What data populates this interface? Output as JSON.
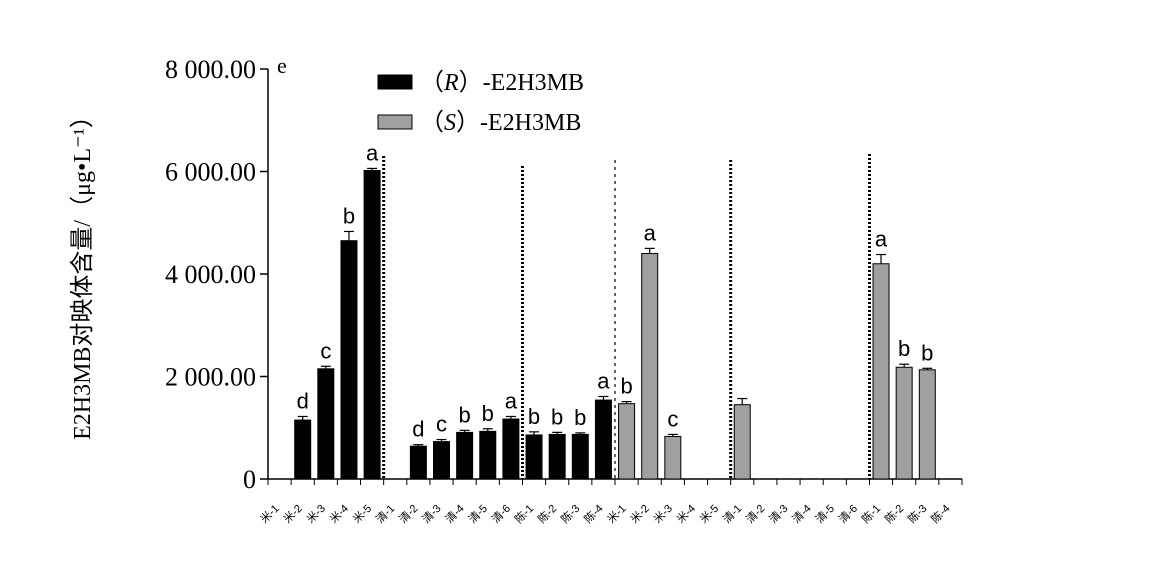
{
  "chart_data": {
    "type": "bar",
    "panel_label": "e",
    "ylabel": "E2H3MB对映体含量/（μg•L⁻¹）",
    "ylim": [
      0,
      8000
    ],
    "yticks": [
      {
        "value": 0,
        "label": "0"
      },
      {
        "value": 2000,
        "label": "2 000.00"
      },
      {
        "value": 4000,
        "label": "4 000.00"
      },
      {
        "value": 6000,
        "label": "6 000.00"
      },
      {
        "value": 8000,
        "label": "8 000.00"
      }
    ],
    "legend": {
      "position": "top-center",
      "items": [
        {
          "series": "R",
          "prefix": "（",
          "italic": "R",
          "suffix": "）-E2H3MB",
          "color": "#000000"
        },
        {
          "series": "S",
          "prefix": "（",
          "italic": "S",
          "suffix": "）-E2H3MB",
          "color": "#a0a0a0"
        }
      ]
    },
    "categories": [
      "米-1",
      "米-2",
      "米-3",
      "米-4",
      "米-5",
      "清-1",
      "清-2",
      "清-3",
      "清-4",
      "清-5",
      "清-6",
      "陈-1",
      "陈-2",
      "陈-3",
      "陈-4",
      "米-1",
      "米-2",
      "米-3",
      "米-4",
      "米-5",
      "清-1",
      "清-2",
      "清-3",
      "清-4",
      "清-5",
      "清-6",
      "陈-1",
      "陈-2",
      "陈-3",
      "陈-4"
    ],
    "bars": [
      {
        "series": "R",
        "value": 0,
        "error": 0,
        "letter": ""
      },
      {
        "series": "R",
        "value": 1150,
        "error": 70,
        "letter": "d"
      },
      {
        "series": "R",
        "value": 2150,
        "error": 50,
        "letter": "c"
      },
      {
        "series": "R",
        "value": 4650,
        "error": 180,
        "letter": "b"
      },
      {
        "series": "R",
        "value": 6020,
        "error": 40,
        "letter": "a"
      },
      {
        "series": "R",
        "value": 0,
        "error": 0,
        "letter": ""
      },
      {
        "series": "R",
        "value": 640,
        "error": 30,
        "letter": "d"
      },
      {
        "series": "R",
        "value": 730,
        "error": 40,
        "letter": "c"
      },
      {
        "series": "R",
        "value": 910,
        "error": 40,
        "letter": "b"
      },
      {
        "series": "R",
        "value": 930,
        "error": 50,
        "letter": "b"
      },
      {
        "series": "R",
        "value": 1170,
        "error": 50,
        "letter": "a"
      },
      {
        "series": "R",
        "value": 860,
        "error": 60,
        "letter": "b"
      },
      {
        "series": "R",
        "value": 870,
        "error": 40,
        "letter": "b"
      },
      {
        "series": "R",
        "value": 870,
        "error": 30,
        "letter": "b"
      },
      {
        "series": "R",
        "value": 1540,
        "error": 70,
        "letter": "a"
      },
      {
        "series": "S",
        "value": 1470,
        "error": 40,
        "letter": "b"
      },
      {
        "series": "S",
        "value": 4400,
        "error": 100,
        "letter": "a"
      },
      {
        "series": "S",
        "value": 830,
        "error": 40,
        "letter": "c"
      },
      {
        "series": "S",
        "value": 0,
        "error": 0,
        "letter": ""
      },
      {
        "series": "S",
        "value": 0,
        "error": 0,
        "letter": ""
      },
      {
        "series": "S",
        "value": 1450,
        "error": 120,
        "letter": ""
      },
      {
        "series": "S",
        "value": 0,
        "error": 0,
        "letter": ""
      },
      {
        "series": "S",
        "value": 0,
        "error": 0,
        "letter": ""
      },
      {
        "series": "S",
        "value": 0,
        "error": 0,
        "letter": ""
      },
      {
        "series": "S",
        "value": 0,
        "error": 0,
        "letter": ""
      },
      {
        "series": "S",
        "value": 0,
        "error": 0,
        "letter": ""
      },
      {
        "series": "S",
        "value": 4200,
        "error": 180,
        "letter": "a"
      },
      {
        "series": "S",
        "value": 2180,
        "error": 60,
        "letter": "b"
      },
      {
        "series": "S",
        "value": 2130,
        "error": 30,
        "letter": "b"
      },
      {
        "series": "S",
        "value": 0,
        "error": 0,
        "letter": ""
      }
    ],
    "group_separators_after_index": [
      4,
      10,
      14,
      19,
      25
    ],
    "grid": false
  }
}
